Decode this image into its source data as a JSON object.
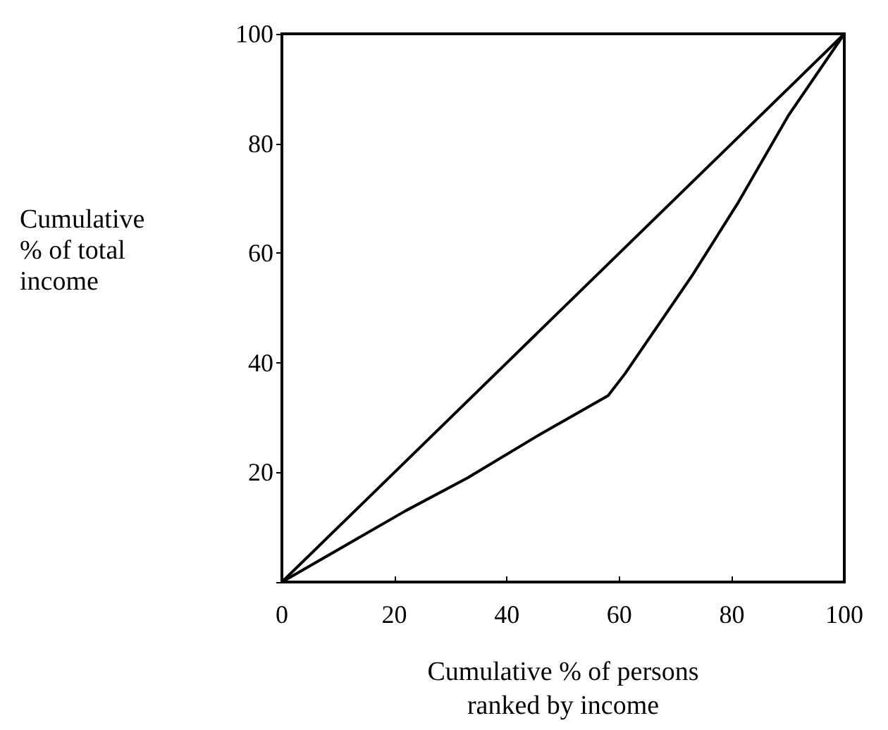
{
  "chart_data": {
    "type": "line",
    "xlabel": "Cumulative % of persons\nranked by income",
    "ylabel": "Cumulative\n% of total\nincome",
    "xlim": [
      0,
      100
    ],
    "ylim": [
      0,
      100
    ],
    "xticks": [
      0,
      20,
      40,
      60,
      80,
      100
    ],
    "yticks": [
      {
        "value": 0,
        "label": null
      },
      20,
      40,
      60,
      80,
      100
    ],
    "grid": false,
    "marker": "none",
    "line_style": "solid",
    "series": [
      {
        "color": "#000000",
        "x": [
          0,
          100
        ],
        "values": [
          0,
          100
        ]
      },
      {
        "color": "#000000",
        "x": [
          0,
          22,
          33,
          46,
          58,
          61,
          73,
          81,
          90,
          100
        ],
        "values": [
          0,
          13,
          19,
          27,
          34,
          38,
          56,
          69,
          85,
          100
        ]
      }
    ]
  }
}
